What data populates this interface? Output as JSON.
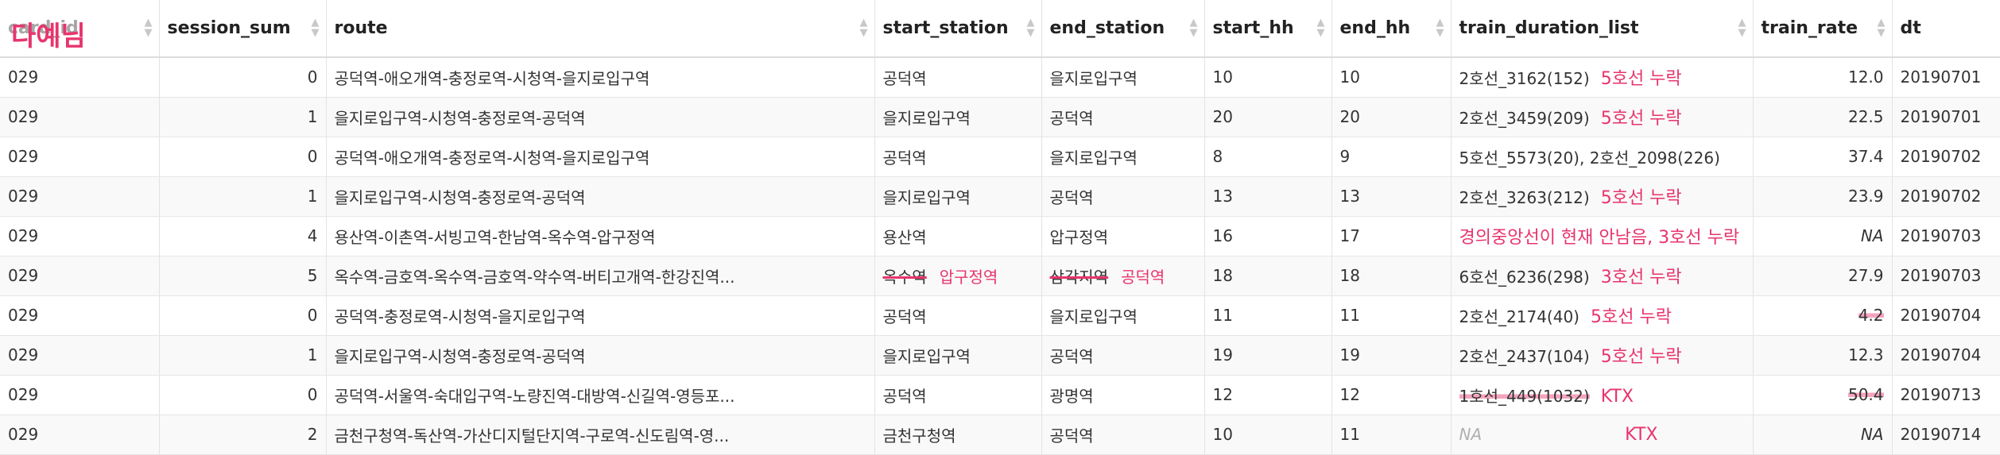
{
  "overlay": {
    "logo_text": "다예님"
  },
  "columns": [
    {
      "key": "col0",
      "label": "card_id"
    },
    {
      "key": "session_sum",
      "label": "session_sum"
    },
    {
      "key": "route",
      "label": "route"
    },
    {
      "key": "start_station",
      "label": "start_station"
    },
    {
      "key": "end_station",
      "label": "end_station"
    },
    {
      "key": "start_hh",
      "label": "start_hh"
    },
    {
      "key": "end_hh",
      "label": "end_hh"
    },
    {
      "key": "train_duration_list",
      "label": "train_duration_list"
    },
    {
      "key": "train_rate",
      "label": "train_rate"
    },
    {
      "key": "dt",
      "label": "dt"
    }
  ],
  "rows": [
    {
      "c0": "029",
      "session_sum": "0",
      "route": "공덕역-애오개역-충정로역-시청역-을지로입구역",
      "start_station": "공덕역",
      "end_station": "을지로입구역",
      "start_hh": "10",
      "end_hh": "10",
      "train_duration_list": "2호선_3162(152)",
      "ann": "5호선 누락",
      "train_rate": "12.0",
      "dt": "20190701"
    },
    {
      "c0": "029",
      "session_sum": "1",
      "route": "을지로입구역-시청역-충정로역-공덕역",
      "start_station": "을지로입구역",
      "end_station": "공덕역",
      "start_hh": "20",
      "end_hh": "20",
      "train_duration_list": "2호선_3459(209)",
      "ann": "5호선 누락",
      "train_rate": "22.5",
      "dt": "20190701"
    },
    {
      "c0": "029",
      "session_sum": "0",
      "route": "공덕역-애오개역-충정로역-시청역-을지로입구역",
      "start_station": "공덕역",
      "end_station": "을지로입구역",
      "start_hh": "8",
      "end_hh": "9",
      "train_duration_list": "5호선_5573(20), 2호선_2098(226)",
      "ann": "",
      "train_rate": "37.4",
      "dt": "20190702"
    },
    {
      "c0": "029",
      "session_sum": "1",
      "route": "을지로입구역-시청역-충정로역-공덕역",
      "start_station": "을지로입구역",
      "end_station": "공덕역",
      "start_hh": "13",
      "end_hh": "13",
      "train_duration_list": "2호선_3263(212)",
      "ann": "5호선 누락",
      "train_rate": "23.9",
      "dt": "20190702"
    },
    {
      "c0": "029",
      "session_sum": "4",
      "route": "용산역-이촌역-서빙고역-한남역-옥수역-압구정역",
      "start_station": "용산역",
      "end_station": "압구정역",
      "start_hh": "16",
      "end_hh": "17",
      "train_duration_list": "",
      "ann_block": "경의중앙선이 현재 안남음, 3호선 누락",
      "train_rate": "NA",
      "dt": "20190703"
    },
    {
      "c0": "029",
      "session_sum": "5",
      "route": "옥수역-금호역-옥수역-금호역-약수역-버티고개역-한강진역...",
      "start_station": "옥수역",
      "start_station_ann": "압구정역",
      "end_station": "삼각지역",
      "end_station_ann": "공덕역",
      "start_hh": "18",
      "end_hh": "18",
      "train_duration_list": "6호선_6236(298)",
      "ann": "3호선 누락",
      "train_rate": "27.9",
      "dt": "20190703"
    },
    {
      "c0": "029",
      "session_sum": "0",
      "route": "공덕역-충정로역-시청역-을지로입구역",
      "start_station": "공덕역",
      "end_station": "을지로입구역",
      "start_hh": "11",
      "end_hh": "11",
      "train_duration_list": "2호선_2174(40)",
      "ann": "5호선 누락",
      "train_rate": "4.2",
      "dt": "20190704"
    },
    {
      "c0": "029",
      "session_sum": "1",
      "route": "을지로입구역-시청역-충정로역-공덕역",
      "start_station": "을지로입구역",
      "end_station": "공덕역",
      "start_hh": "19",
      "end_hh": "19",
      "train_duration_list": "2호선_2437(104)",
      "ann": "5호선 누락",
      "train_rate": "12.3",
      "dt": "20190704"
    },
    {
      "c0": "029",
      "session_sum": "0",
      "route": "공덕역-서울역-숙대입구역-노량진역-대방역-신길역-영등포...",
      "start_station": "공덕역",
      "end_station": "광명역",
      "start_hh": "12",
      "end_hh": "12",
      "train_duration_list": "1호선_449(1032)",
      "ann": "KTX",
      "train_rate": "50.4",
      "dt": "20190713"
    },
    {
      "c0": "029",
      "session_sum": "2",
      "route": "금천구청역-독산역-가산디지털단지역-구로역-신도림역-영...",
      "start_station": "금천구청역",
      "end_station": "공덕역",
      "start_hh": "10",
      "end_hh": "11",
      "train_duration_list": "NA",
      "ann": "KTX",
      "train_rate": "NA",
      "dt": "20190714"
    }
  ]
}
